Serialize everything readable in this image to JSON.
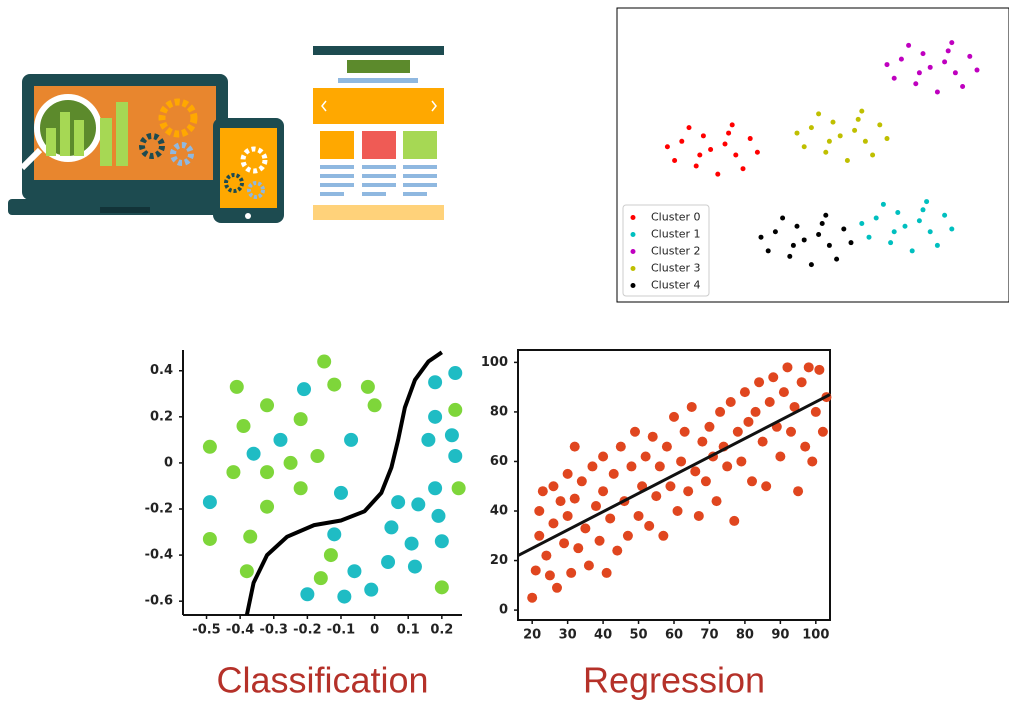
{
  "chart_data": [
    {
      "type": "scatter",
      "legend": "lower left",
      "xlim": [
        0,
        100
      ],
      "ylim": [
        0,
        100
      ],
      "series": [
        {
          "name": "Cluster 0",
          "color": "#ff0000",
          "x": [
            21,
            13,
            28,
            17,
            26,
            9,
            32,
            23,
            15,
            30,
            19,
            25,
            11,
            34,
            18,
            27
          ],
          "values": [
            52,
            55,
            50,
            46,
            58,
            53,
            56,
            43,
            60,
            45,
            57,
            54,
            48,
            51,
            50,
            61
          ]
        },
        {
          "name": "Cluster 1",
          "color": "#00bfbf",
          "x": [
            75,
            67,
            82,
            71,
            80,
            63,
            86,
            77,
            69,
            84,
            73,
            79,
            65,
            88,
            72,
            81
          ],
          "values": [
            24,
            27,
            22,
            18,
            30,
            25,
            28,
            15,
            32,
            17,
            29,
            26,
            20,
            23,
            22,
            33
          ]
        },
        {
          "name": "Cluster 2",
          "color": "#bf00bf",
          "x": [
            82,
            74,
            89,
            78,
            87,
            70,
            93,
            84,
            76,
            91,
            80,
            86,
            72,
            95,
            79,
            88
          ],
          "values": [
            82,
            85,
            80,
            76,
            88,
            83,
            86,
            73,
            90,
            75,
            87,
            84,
            78,
            81,
            80,
            91
          ]
        },
        {
          "name": "Cluster 3",
          "color": "#bfbf00",
          "x": [
            57,
            49,
            64,
            53,
            62,
            45,
            68,
            59,
            51,
            66,
            55,
            61,
            47,
            70,
            54,
            63
          ],
          "values": [
            57,
            60,
            55,
            51,
            63,
            58,
            61,
            48,
            65,
            50,
            62,
            59,
            53,
            56,
            55,
            66
          ]
        },
        {
          "name": "Cluster 4",
          "color": "#000000",
          "x": [
            47,
            39,
            54,
            43,
            52,
            35,
            58,
            49,
            41,
            56,
            45,
            51,
            37,
            60,
            44,
            53
          ],
          "values": [
            19,
            22,
            17,
            13,
            25,
            20,
            23,
            10,
            27,
            12,
            24,
            21,
            15,
            18,
            17,
            28
          ]
        }
      ]
    },
    {
      "type": "scatter",
      "title": "Classification",
      "xlim": [
        -0.57,
        0.26
      ],
      "ylim": [
        -0.66,
        0.49
      ],
      "xticks": [
        -0.5,
        -0.4,
        -0.3,
        -0.2,
        -0.1,
        0,
        0.1,
        0.2
      ],
      "yticks": [
        0.4,
        0.2,
        0,
        -0.2,
        -0.4,
        -0.6
      ],
      "series": [
        {
          "color": "#7ed63a",
          "x": [
            -0.41,
            -0.15,
            -0.32,
            -0.12,
            -0.02,
            0,
            -0.39,
            -0.22,
            -0.49,
            -0.42,
            -0.32,
            -0.25,
            -0.17,
            -0.22,
            -0.32,
            -0.49,
            -0.37,
            -0.38,
            -0.16,
            -0.13,
            0.2,
            0.25,
            0.24
          ],
          "values": [
            0.33,
            0.44,
            0.25,
            0.34,
            0.33,
            0.25,
            0.16,
            0.19,
            0.07,
            -0.04,
            -0.04,
            0,
            0.03,
            -0.11,
            -0.19,
            -0.33,
            -0.32,
            -0.47,
            -0.5,
            -0.4,
            -0.54,
            -0.11,
            0.23
          ]
        },
        {
          "color": "#1fbcc4",
          "x": [
            -0.21,
            -0.36,
            -0.28,
            -0.07,
            -0.49,
            -0.1,
            -0.12,
            -0.2,
            -0.09,
            -0.01,
            -0.06,
            0.04,
            0.07,
            0.05,
            0.11,
            0.12,
            0.2,
            0.19,
            0.13,
            0.16,
            0.23,
            0.24,
            0.18,
            0.18,
            0.18,
            0.24
          ],
          "values": [
            0.32,
            0.04,
            0.1,
            0.1,
            -0.17,
            -0.13,
            -0.31,
            -0.57,
            -0.58,
            -0.55,
            -0.47,
            -0.43,
            -0.17,
            -0.28,
            -0.35,
            -0.45,
            -0.34,
            -0.23,
            -0.18,
            0.1,
            0.12,
            0.03,
            -0.11,
            0.2,
            0.35,
            0.39
          ]
        }
      ],
      "boundary": {
        "color": "#000000",
        "x": [
          -0.38,
          -0.36,
          -0.32,
          -0.26,
          -0.18,
          -0.1,
          -0.03,
          0.02,
          0.05,
          0.07,
          0.09,
          0.12,
          0.16,
          0.2
        ],
        "values": [
          -0.66,
          -0.52,
          -0.4,
          -0.32,
          -0.27,
          -0.25,
          -0.21,
          -0.13,
          -0.02,
          0.1,
          0.24,
          0.36,
          0.44,
          0.48
        ]
      }
    },
    {
      "type": "scatter",
      "title": "Regression",
      "xlim": [
        16,
        104
      ],
      "ylim": [
        -4,
        105
      ],
      "xticks": [
        20,
        30,
        40,
        50,
        60,
        70,
        80,
        90,
        100
      ],
      "yticks": [
        0,
        20,
        40,
        60,
        80,
        100
      ],
      "frame": true,
      "series": [
        {
          "color": "#e0461f",
          "x": [
            20,
            21,
            22,
            22,
            23,
            24,
            25,
            26,
            26,
            27,
            28,
            29,
            30,
            30,
            31,
            32,
            32,
            33,
            34,
            35,
            36,
            37,
            38,
            39,
            40,
            40,
            41,
            42,
            43,
            44,
            45,
            46,
            47,
            48,
            49,
            50,
            51,
            52,
            53,
            54,
            55,
            56,
            57,
            58,
            59,
            60,
            61,
            62,
            63,
            64,
            65,
            66,
            67,
            68,
            69,
            70,
            71,
            72,
            73,
            74,
            75,
            76,
            77,
            78,
            79,
            80,
            81,
            82,
            83,
            84,
            85,
            86,
            87,
            88,
            89,
            90,
            91,
            92,
            93,
            94,
            95,
            96,
            97,
            98,
            99,
            100,
            101,
            102,
            103
          ],
          "values": [
            5,
            16,
            30,
            40,
            48,
            22,
            14,
            35,
            50,
            9,
            44,
            27,
            38,
            55,
            15,
            66,
            45,
            25,
            52,
            33,
            18,
            58,
            42,
            28,
            48,
            62,
            15,
            37,
            55,
            24,
            66,
            44,
            30,
            58,
            72,
            38,
            50,
            62,
            34,
            70,
            46,
            58,
            30,
            66,
            50,
            78,
            40,
            60,
            72,
            48,
            82,
            56,
            38,
            68,
            52,
            74,
            62,
            44,
            80,
            66,
            58,
            84,
            36,
            72,
            60,
            88,
            76,
            52,
            80,
            92,
            68,
            50,
            84,
            94,
            74,
            62,
            88,
            98,
            72,
            82,
            48,
            92,
            66,
            98,
            60,
            80,
            97,
            72,
            86
          ]
        }
      ],
      "trend": {
        "color": "#111111",
        "x": [
          16,
          104
        ],
        "values": [
          22,
          87
        ]
      }
    }
  ]
}
